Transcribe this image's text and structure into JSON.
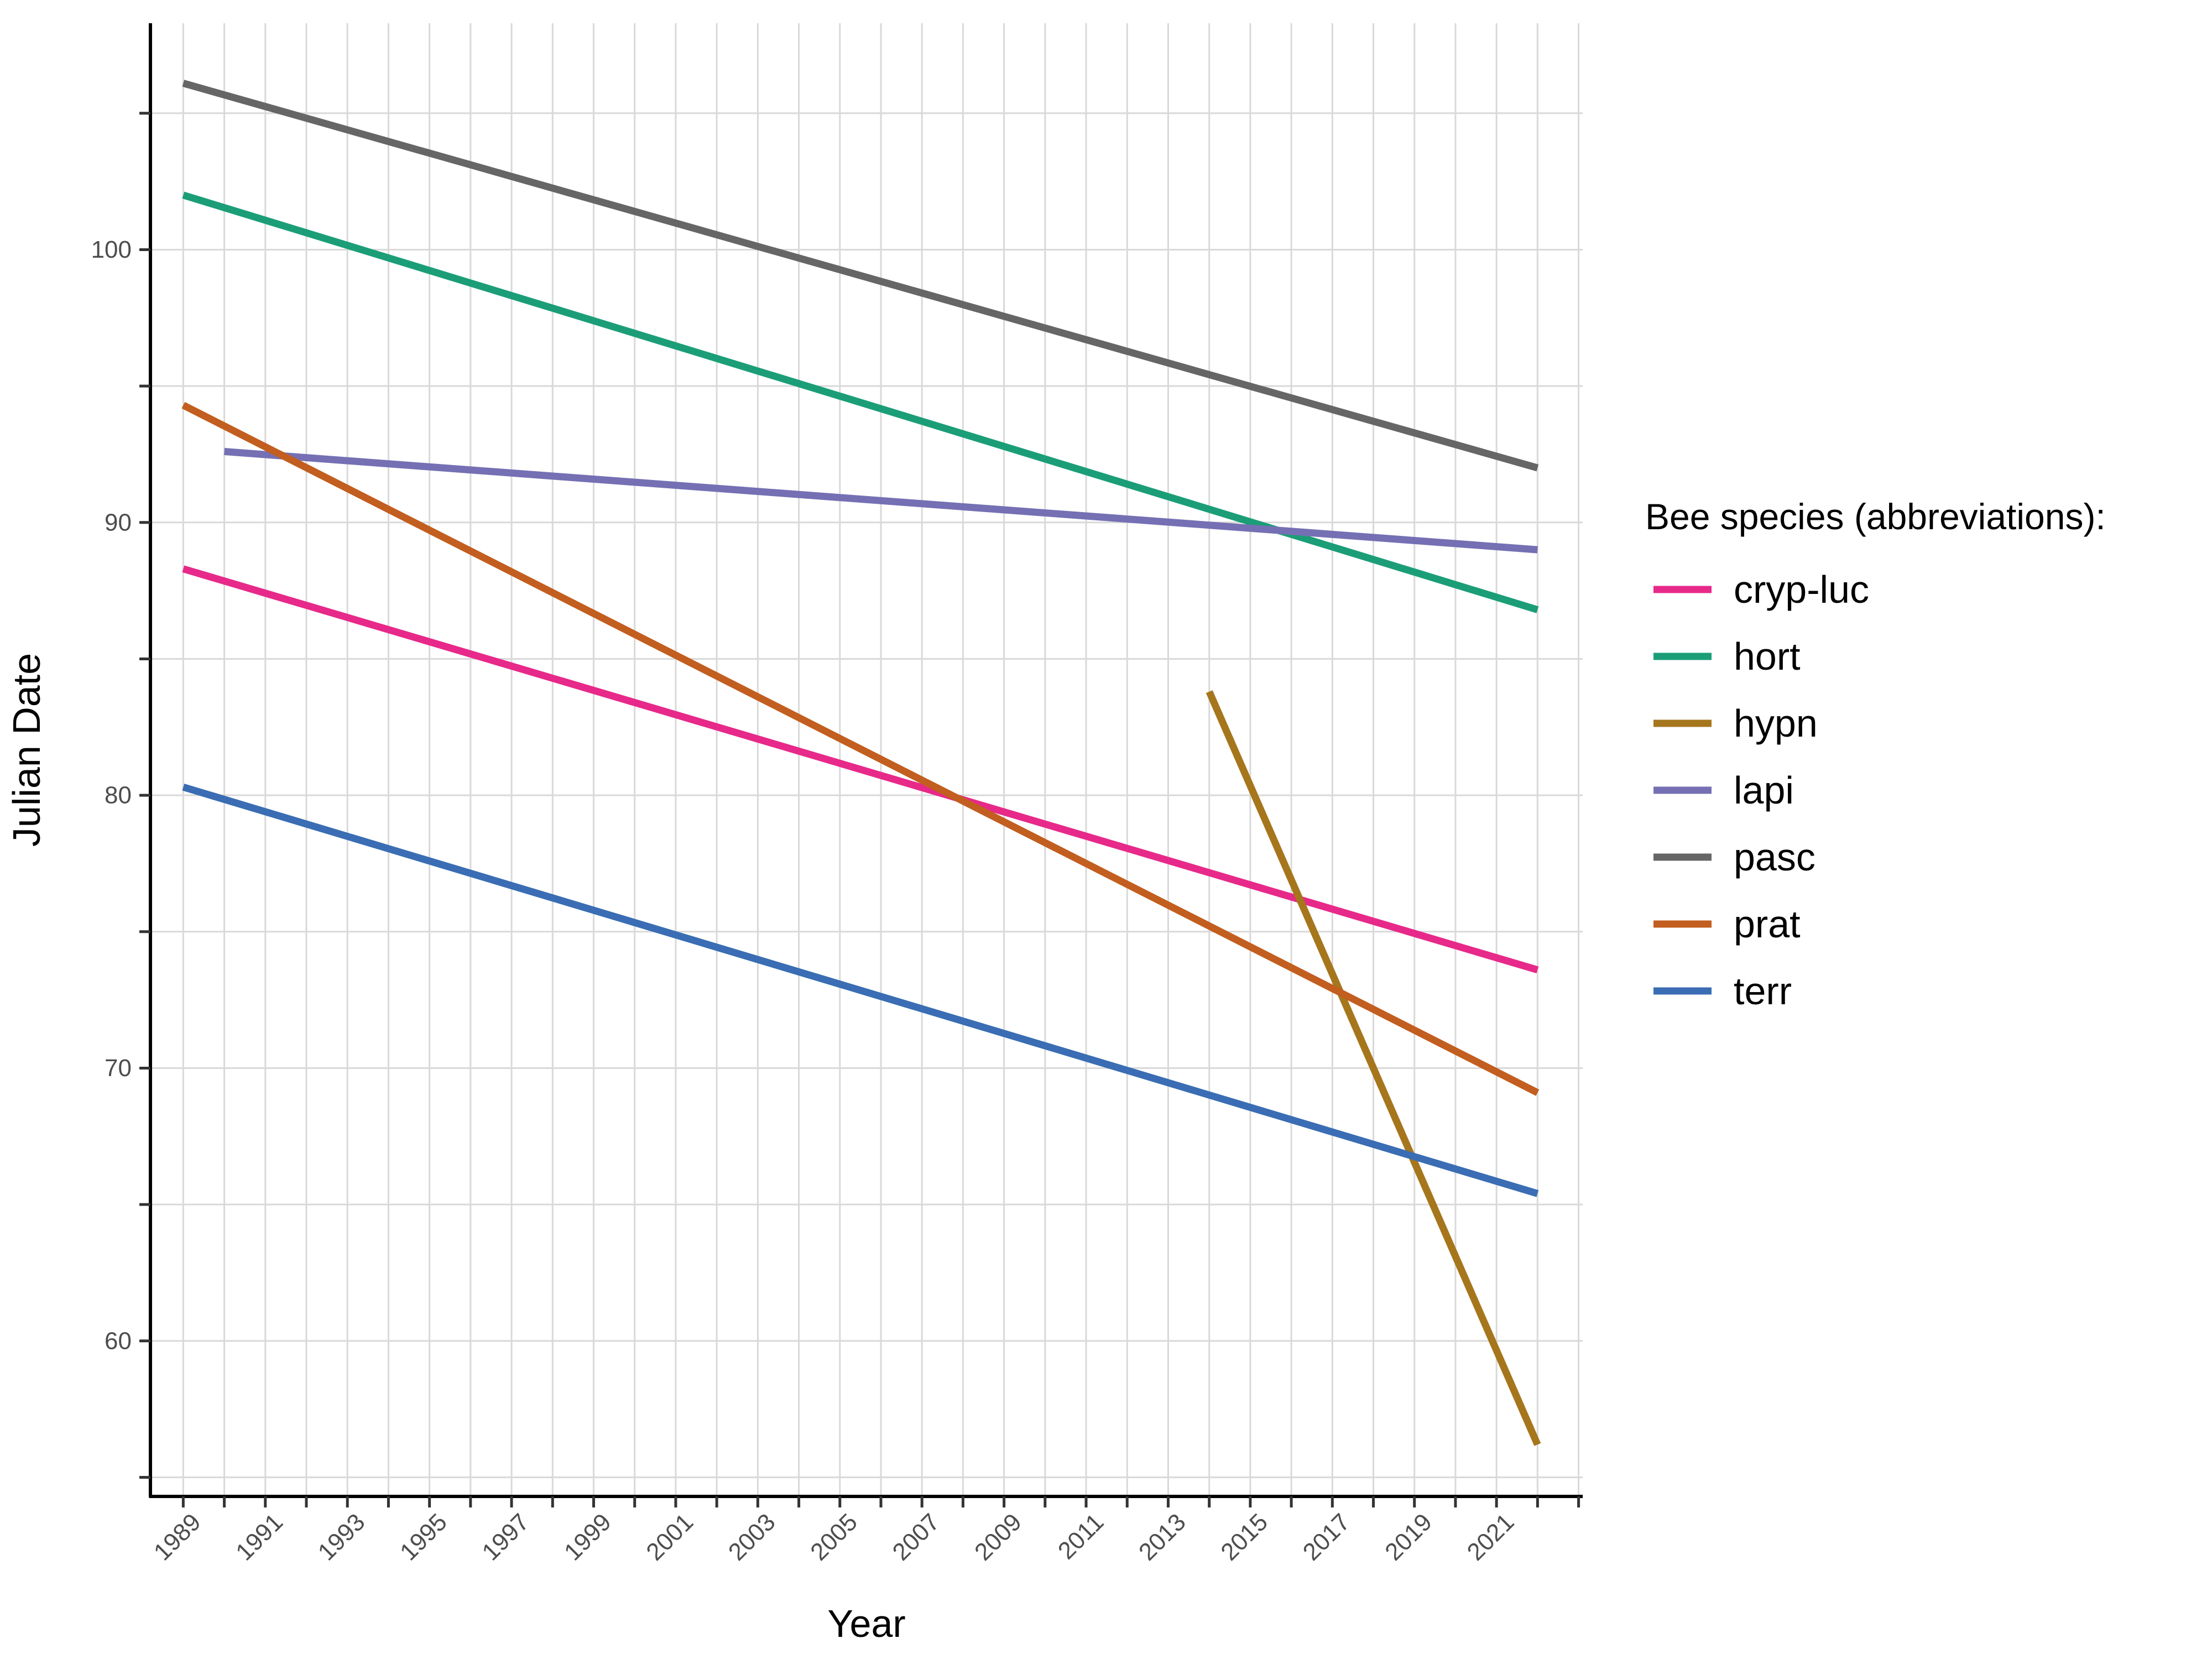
{
  "chart_data": {
    "type": "line",
    "title": "",
    "xlabel": "Year",
    "ylabel": "Julian Date",
    "xlim": [
      1988.2,
      2023.1
    ],
    "ylim": [
      54.3,
      108.3
    ],
    "x_ticks": [
      1989,
      1991,
      1993,
      1995,
      1997,
      1999,
      2001,
      2003,
      2005,
      2007,
      2009,
      2011,
      2013,
      2015,
      2017,
      2019,
      2021
    ],
    "y_ticks": [
      60,
      70,
      80,
      90,
      100
    ],
    "grid": true,
    "legend": {
      "title": "Bee species (abbreviations):",
      "position": "right"
    },
    "series": [
      {
        "name": "cryp-luc",
        "color": "#e7298a",
        "x": [
          1989,
          2022
        ],
        "y": [
          88.3,
          73.6
        ]
      },
      {
        "name": "hort",
        "color": "#1b9e77",
        "x": [
          1989,
          2022
        ],
        "y": [
          102.0,
          86.8
        ]
      },
      {
        "name": "hypn",
        "color": "#a6761d",
        "x": [
          2014,
          2022
        ],
        "y": [
          83.8,
          56.2
        ]
      },
      {
        "name": "lapi",
        "color": "#7570b3",
        "x": [
          1990,
          2022
        ],
        "y": [
          92.6,
          89.0
        ]
      },
      {
        "name": "pasc",
        "color": "#666666",
        "x": [
          1989,
          2022
        ],
        "y": [
          106.1,
          92.0
        ]
      },
      {
        "name": "prat",
        "color": "#c25e1f",
        "x": [
          1989,
          2022
        ],
        "y": [
          94.3,
          69.1
        ]
      },
      {
        "name": "terr",
        "color": "#3a6db3",
        "x": [
          1989,
          2022
        ],
        "y": [
          80.3,
          65.4
        ]
      }
    ]
  }
}
